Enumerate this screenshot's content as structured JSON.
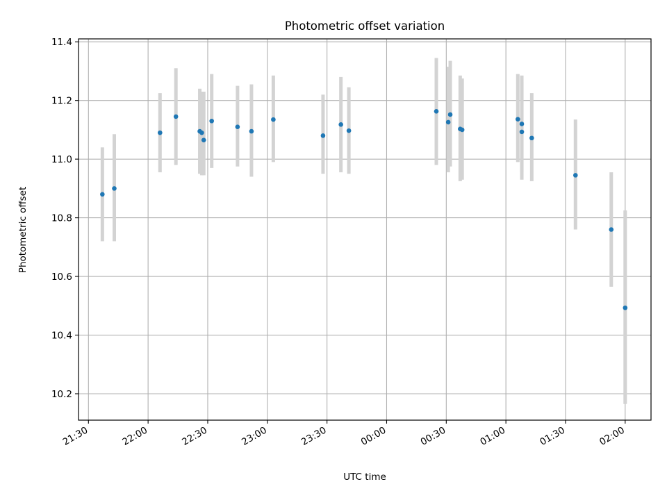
{
  "chart_data": {
    "type": "scatter",
    "title": "Photometric offset variation",
    "xlabel": "UTC time",
    "ylabel": "Photometric offset",
    "x_axis_type": "time",
    "x_tick_format": "HH:MM",
    "x_ticks": [
      "21:30",
      "22:00",
      "22:30",
      "23:00",
      "23:30",
      "00:00",
      "00:30",
      "01:00",
      "01:30",
      "02:00"
    ],
    "y_ticks": [
      "10.2",
      "10.4",
      "10.6",
      "10.8",
      "11.0",
      "11.2",
      "11.4"
    ],
    "xlim": [
      "21:25",
      "02:13"
    ],
    "ylim": [
      10.11,
      11.41
    ],
    "grid": true,
    "legend": "none",
    "colors": {
      "marker": "#1f77b4",
      "error_bar": "#d3d3d3",
      "grid": "#b0b0b0",
      "axes": "#000000"
    },
    "series": [
      {
        "x": [
          "21:37",
          "21:43",
          "22:06",
          "22:14",
          "22:26",
          "22:27",
          "22:28",
          "22:32",
          "22:45",
          "22:52",
          "23:03",
          "23:28",
          "23:37",
          "23:41",
          "00:25",
          "00:31",
          "00:32",
          "00:37",
          "00:38",
          "01:06",
          "01:08",
          "01:08",
          "01:13",
          "01:35",
          "01:53",
          "02:00"
        ],
        "y": [
          10.88,
          10.9,
          11.09,
          11.145,
          11.095,
          11.09,
          11.065,
          11.13,
          11.11,
          11.095,
          11.135,
          11.08,
          11.118,
          11.097,
          11.163,
          11.126,
          11.152,
          11.103,
          11.1,
          11.136,
          11.12,
          11.093,
          11.072,
          10.945,
          10.76,
          10.493
        ],
        "err_low": [
          10.72,
          10.72,
          10.955,
          10.98,
          10.95,
          10.945,
          10.945,
          10.97,
          10.975,
          10.94,
          10.99,
          10.95,
          10.955,
          10.95,
          10.98,
          10.955,
          10.975,
          10.925,
          10.93,
          10.99,
          10.955,
          10.93,
          10.925,
          10.76,
          10.565,
          10.165
        ],
        "err_high": [
          11.04,
          11.085,
          11.225,
          11.31,
          11.24,
          11.23,
          11.23,
          11.29,
          11.25,
          11.255,
          11.285,
          11.22,
          11.28,
          11.245,
          11.345,
          11.315,
          11.335,
          11.285,
          11.275,
          11.29,
          11.285,
          11.265,
          11.225,
          11.135,
          10.955,
          10.825
        ]
      }
    ]
  }
}
